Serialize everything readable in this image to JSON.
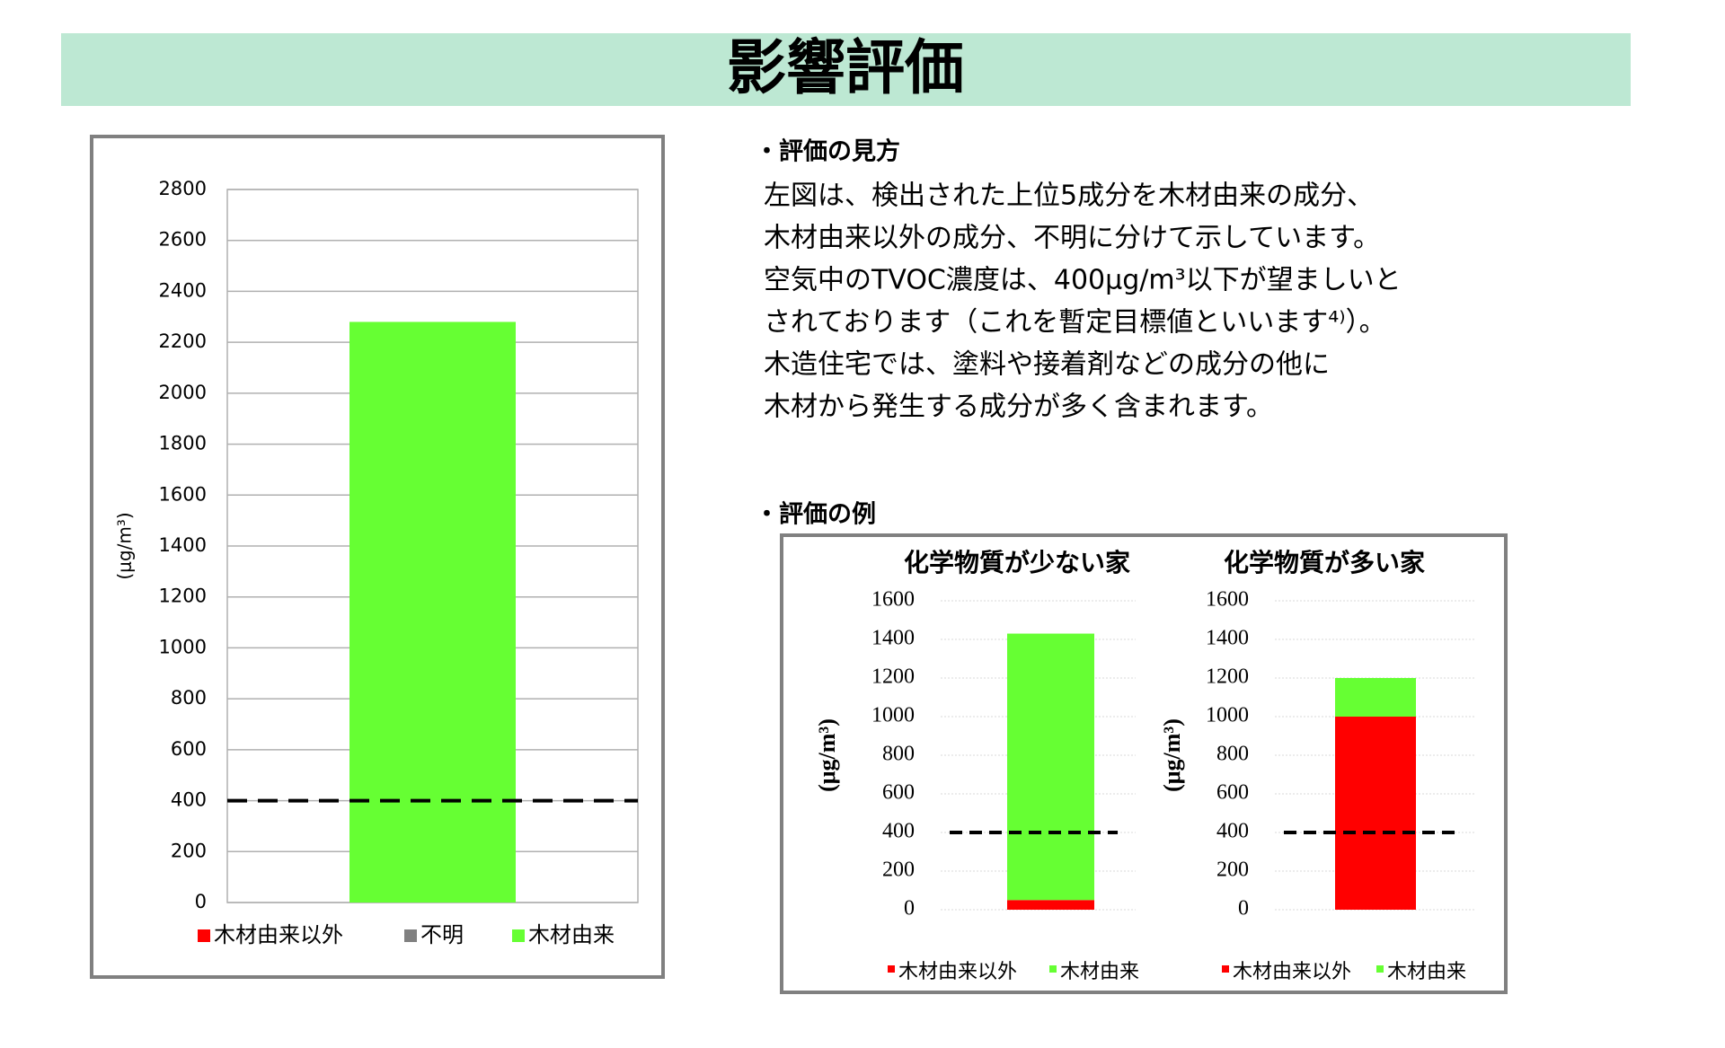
{
  "header": {
    "title": "影響評価"
  },
  "text": {
    "heading1": "・評価の見方",
    "lines": [
      "左図は、検出された上位5成分を木材由来の成分、",
      "木材由来以外の成分、不明に分けて示しています。",
      "空気中のTVOC濃度は、400μg/m³以下が望ましいと",
      "されております（これを暫定目標値といいます⁴⁾）。",
      "木造住宅では、塗料や接着剤などの成分の他に",
      "木材から発生する成分が多く含まれます。"
    ],
    "heading2": "・評価の例"
  },
  "chart_data": [
    {
      "type": "bar",
      "stacked": true,
      "y_label": "(μg/m³)",
      "categories": [
        null
      ],
      "series": [
        {
          "name": "木材由来以外",
          "color": "#ff0000",
          "values": [
            0
          ]
        },
        {
          "name": "不明",
          "color": "#808080",
          "values": [
            0
          ]
        },
        {
          "name": "木材由来",
          "color": "#66ff33",
          "values": [
            2280
          ]
        }
      ],
      "ylim": [
        0,
        2800
      ],
      "yticks": [
        0,
        200,
        400,
        600,
        800,
        1000,
        1200,
        1400,
        1600,
        1800,
        2000,
        2200,
        2400,
        2600,
        2800
      ],
      "grid": true,
      "reference_line": 400
    },
    {
      "type": "bar",
      "stacked": true,
      "title": "化学物質が少ない家",
      "y_label": "(μg/m³)",
      "categories": [
        null
      ],
      "series": [
        {
          "name": "木材由来以外",
          "color": "#ff0000",
          "values": [
            50
          ]
        },
        {
          "name": "木材由来",
          "color": "#66ff33",
          "values": [
            1380
          ]
        }
      ],
      "ylim": [
        0,
        1600
      ],
      "yticks": [
        0,
        200,
        400,
        600,
        800,
        1000,
        1200,
        1400,
        1600
      ],
      "grid": true,
      "reference_line": 400
    },
    {
      "type": "bar",
      "stacked": true,
      "title": "化学物質が多い家",
      "y_label": "(μg/m³)",
      "categories": [
        null
      ],
      "series": [
        {
          "name": "木材由来以外",
          "color": "#ff0000",
          "values": [
            1000
          ]
        },
        {
          "name": "木材由来",
          "color": "#66ff33",
          "values": [
            200
          ]
        }
      ],
      "ylim": [
        0,
        1600
      ],
      "yticks": [
        0,
        200,
        400,
        600,
        800,
        1000,
        1200,
        1400,
        1600
      ],
      "grid": true,
      "reference_line": 400
    }
  ]
}
